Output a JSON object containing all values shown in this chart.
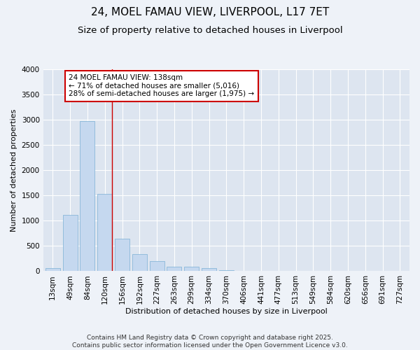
{
  "title": "24, MOEL FAMAU VIEW, LIVERPOOL, L17 7ET",
  "subtitle": "Size of property relative to detached houses in Liverpool",
  "xlabel": "Distribution of detached houses by size in Liverpool",
  "ylabel": "Number of detached properties",
  "categories": [
    "13sqm",
    "49sqm",
    "84sqm",
    "120sqm",
    "156sqm",
    "192sqm",
    "227sqm",
    "263sqm",
    "299sqm",
    "334sqm",
    "370sqm",
    "406sqm",
    "441sqm",
    "477sqm",
    "513sqm",
    "549sqm",
    "584sqm",
    "620sqm",
    "656sqm",
    "691sqm",
    "727sqm"
  ],
  "values": [
    55,
    1110,
    2970,
    1530,
    650,
    340,
    195,
    95,
    90,
    65,
    25,
    10,
    10,
    5,
    0,
    0,
    0,
    0,
    0,
    0,
    0
  ],
  "bar_color": "#c5d8ef",
  "bar_edge_color": "#7aafd4",
  "vline_color": "#cc0000",
  "annotation_text": "24 MOEL FAMAU VIEW: 138sqm\n← 71% of detached houses are smaller (5,016)\n28% of semi-detached houses are larger (1,975) →",
  "annotation_box_color": "#ffffff",
  "annotation_box_edge": "#cc0000",
  "ylim": [
    0,
    4000
  ],
  "yticks": [
    0,
    500,
    1000,
    1500,
    2000,
    2500,
    3000,
    3500,
    4000
  ],
  "footer": "Contains HM Land Registry data © Crown copyright and database right 2025.\nContains public sector information licensed under the Open Government Licence v3.0.",
  "bg_color": "#eef2f8",
  "plot_bg_color": "#dde5f0",
  "grid_color": "#ffffff",
  "title_fontsize": 11,
  "subtitle_fontsize": 9.5,
  "axis_label_fontsize": 8,
  "tick_fontsize": 7.5,
  "annotation_fontsize": 7.5,
  "footer_fontsize": 6.5
}
